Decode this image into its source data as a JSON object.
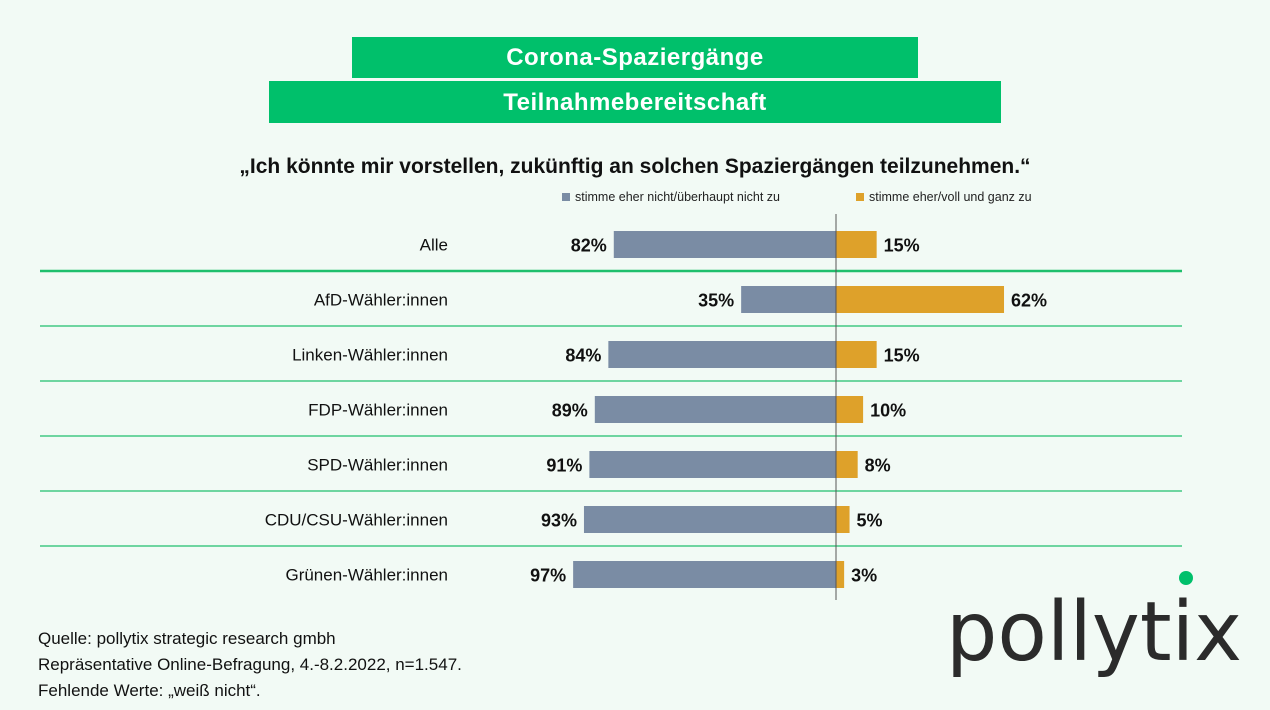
{
  "header": {
    "title": "Corona-Spaziergänge",
    "subtitle": "Teilnahmebereitschaft",
    "question": "„Ich könnte mir vorstellen, zukünftig an solchen Spaziergängen teilzunehmen.“"
  },
  "colors": {
    "accent_green": "#00c06b",
    "disagree": "#7a8ca4",
    "agree": "#dea12a",
    "background": "#f2faf5"
  },
  "chart_data": {
    "type": "bar",
    "orientation": "horizontal-diverging",
    "categories": [
      "Alle",
      "AfD-Wähler:innen",
      "Linken-Wähler:innen",
      "FDP-Wähler:innen",
      "SPD-Wähler:innen",
      "CDU/CSU-Wähler:innen",
      "Grünen-Wähler:innen"
    ],
    "series": [
      {
        "name": "stimme eher nicht/überhaupt nicht zu",
        "color": "#7a8ca4",
        "direction": "left",
        "values": [
          82,
          35,
          84,
          89,
          91,
          93,
          97
        ]
      },
      {
        "name": "stimme eher/voll und ganz zu",
        "color": "#dea12a",
        "direction": "right",
        "values": [
          15,
          62,
          15,
          10,
          8,
          5,
          3
        ]
      }
    ],
    "value_suffix": "%",
    "legend_position": "top",
    "grid": false
  },
  "footer": {
    "line1": "Quelle: pollytix strategic research gmbh",
    "line2": "Repräsentative Online-Befragung, 4.-8.2.2022, n=1.547.",
    "line3": "Fehlende Werte: „weiß nicht“."
  },
  "logo": {
    "text": "pollytix",
    "dot_color": "#00c06b"
  }
}
